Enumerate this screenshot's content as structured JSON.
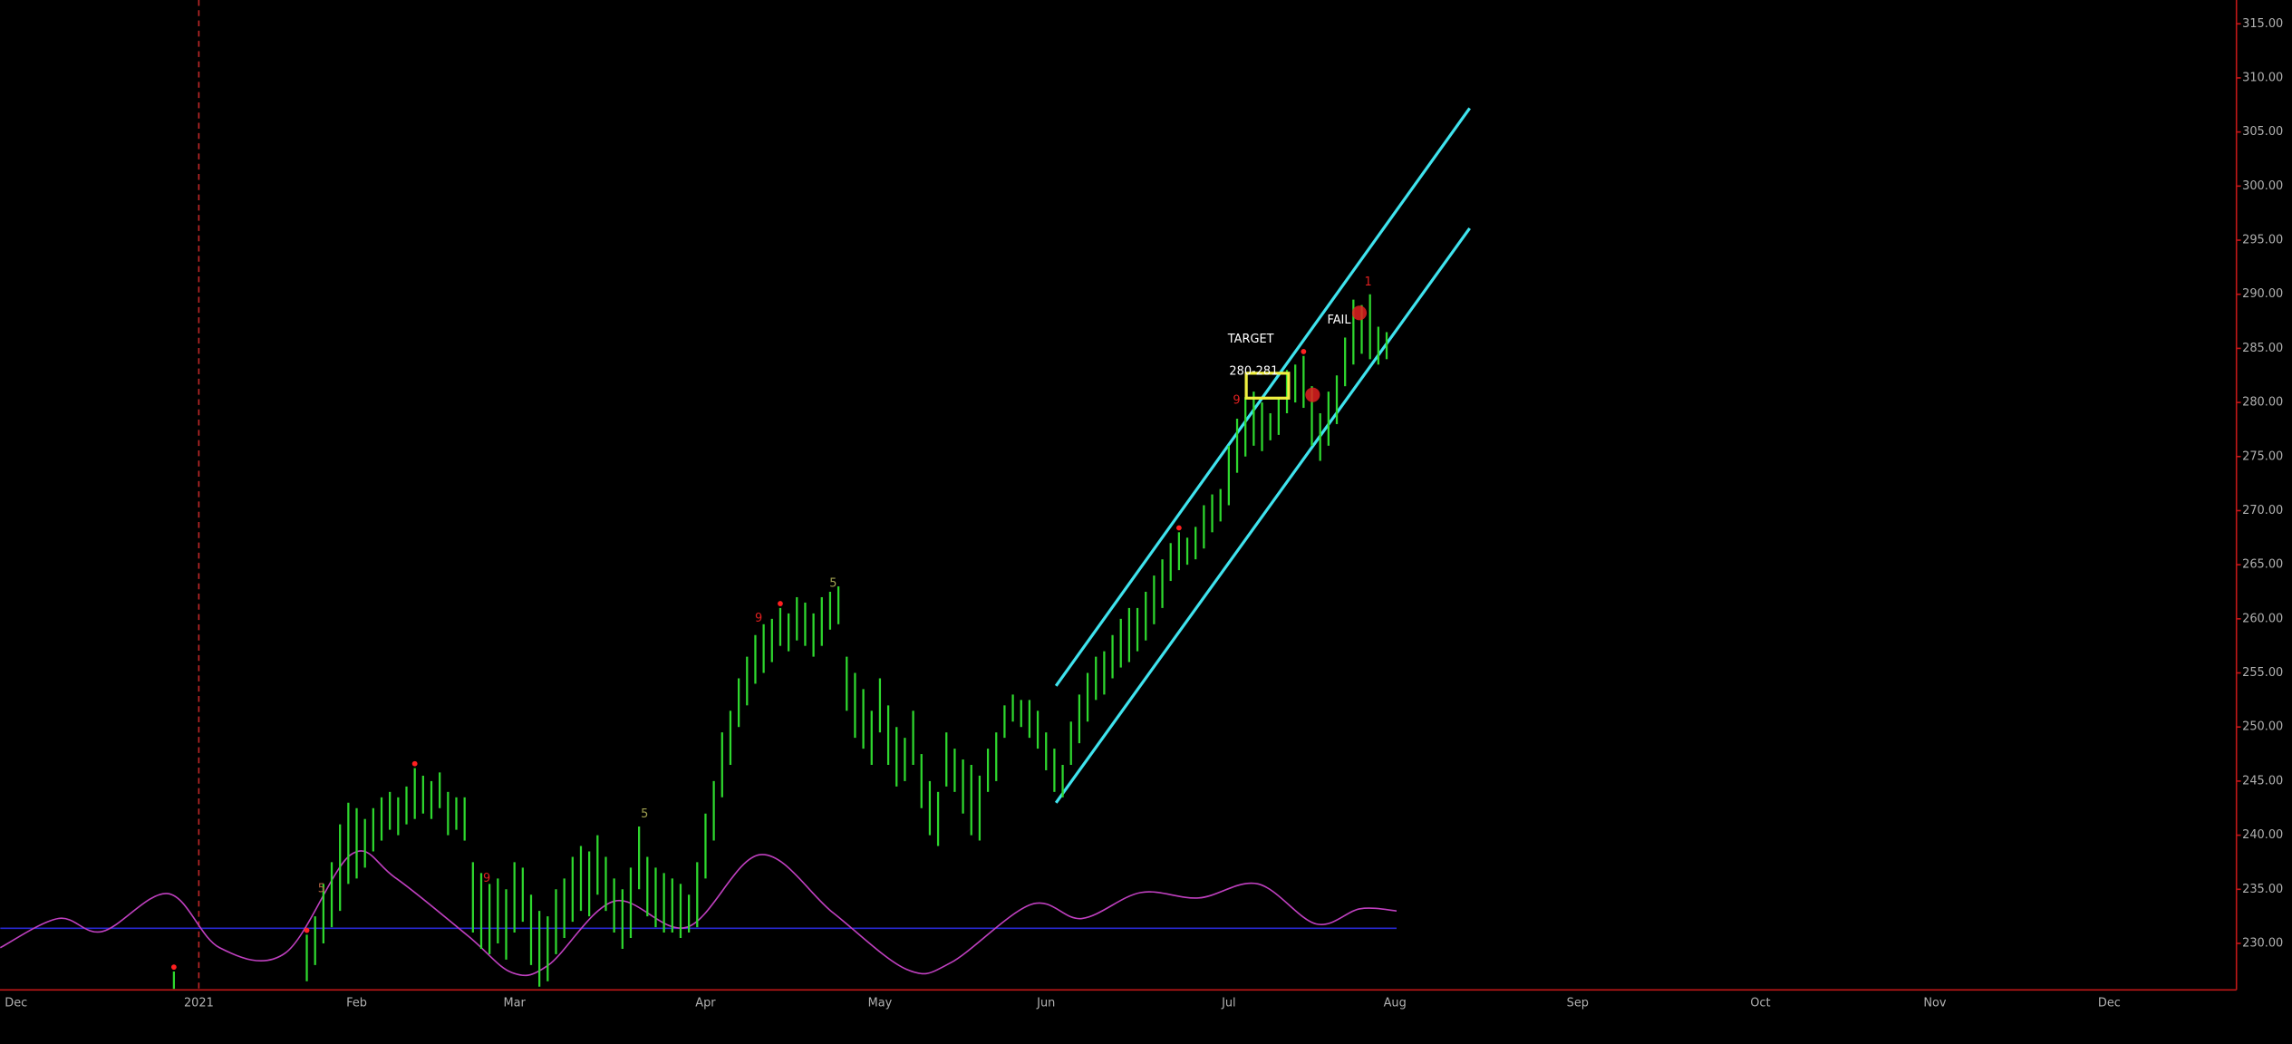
{
  "chart_data": {
    "type": "ohlc",
    "categories": [
      "Dec",
      null,
      null,
      null,
      null,
      null,
      null,
      null,
      null,
      null,
      null,
      null,
      null,
      null,
      null,
      null,
      null,
      null,
      null,
      null,
      null,
      null,
      "2021",
      null,
      null,
      null,
      null,
      null,
      null,
      null,
      null,
      null,
      null,
      null,
      null,
      null,
      null,
      null,
      null,
      null,
      null,
      "Feb",
      null,
      null,
      null,
      null,
      null,
      null,
      null,
      null,
      null,
      null,
      null,
      null,
      null,
      null,
      null,
      null,
      null,
      null,
      "Mar",
      null,
      null,
      null,
      null,
      null,
      null,
      null,
      null,
      null,
      null,
      null,
      null,
      null,
      null,
      null,
      null,
      null,
      null,
      null,
      null,
      null,
      null,
      "Apr",
      null,
      null,
      null,
      null,
      null,
      null,
      null,
      null,
      null,
      null,
      null,
      null,
      null,
      null,
      null,
      null,
      null,
      null,
      null,
      null,
      "May",
      null,
      null,
      null,
      null,
      null,
      null,
      null,
      null,
      null,
      null,
      null,
      null,
      null,
      null,
      null,
      null,
      null,
      null,
      null,
      "Jun",
      null,
      null,
      null,
      null,
      null,
      null,
      null,
      null,
      null,
      null,
      null,
      null,
      null,
      null,
      null,
      null,
      null,
      null,
      null,
      null,
      null,
      "Jul",
      null,
      null,
      null,
      null,
      null,
      null,
      null,
      null,
      null,
      null,
      null,
      null,
      null,
      null,
      null,
      null,
      null,
      null,
      null,
      "Aug",
      null,
      null,
      null,
      null,
      null,
      null,
      null,
      null,
      null,
      null,
      null,
      null,
      null,
      null,
      null,
      null,
      null,
      null,
      null,
      null,
      null,
      "Sep",
      null,
      null,
      null,
      null,
      null,
      null,
      null,
      null,
      null,
      null,
      null,
      null,
      null,
      null,
      null,
      null,
      null,
      null,
      null,
      null,
      null,
      "Oct",
      null,
      null,
      null,
      null,
      null,
      null,
      null,
      null,
      null,
      null,
      null,
      null,
      null,
      null,
      null,
      null,
      null,
      null,
      null,
      null,
      "Nov",
      null,
      null,
      null,
      null,
      null,
      null,
      null,
      null,
      null,
      null,
      null,
      null,
      null,
      null,
      null,
      null,
      null,
      null,
      null,
      null,
      "Dec",
      null,
      null,
      null,
      null,
      null,
      null,
      null,
      null,
      null,
      null,
      null,
      null,
      null,
      null
    ],
    "high": [
      null,
      null,
      null,
      null,
      null,
      null,
      null,
      null,
      null,
      null,
      null,
      null,
      null,
      null,
      null,
      null,
      null,
      null,
      null,
      227.4,
      null,
      null,
      null,
      null,
      null,
      null,
      null,
      null,
      null,
      null,
      null,
      null,
      null,
      null,
      null,
      230.8,
      232.5,
      235.5,
      237.5,
      241.0,
      243.0,
      242.5,
      241.5,
      242.5,
      243.5,
      244.0,
      243.5,
      244.5,
      246.2,
      245.5,
      245.0,
      245.8,
      244.0,
      243.5,
      243.5,
      237.5,
      236.5,
      235.5,
      236.0,
      235.0,
      237.5,
      237.0,
      234.5,
      233.0,
      232.5,
      235.0,
      236.0,
      238.0,
      239.0,
      238.5,
      240.0,
      238.0,
      236.0,
      235.0,
      237.0,
      240.8,
      238.0,
      237.0,
      236.5,
      236.0,
      235.5,
      234.5,
      237.5,
      242.0,
      245.0,
      249.5,
      251.5,
      254.5,
      256.5,
      258.5,
      259.5,
      260.0,
      261.0,
      260.5,
      262.0,
      261.5,
      260.5,
      262.0,
      262.5,
      263.0,
      256.5,
      255.0,
      253.5,
      251.5,
      254.5,
      252.0,
      250.0,
      249.0,
      251.5,
      247.5,
      245.0,
      244.0,
      249.5,
      248.0,
      247.0,
      246.5,
      245.5,
      248.0,
      249.5,
      252.0,
      253.0,
      252.5,
      252.5,
      251.5,
      249.5,
      248.0,
      246.5,
      250.5,
      253.0,
      255.0,
      256.5,
      257.0,
      258.5,
      260.0,
      261.0,
      261.0,
      262.5,
      264.0,
      265.5,
      267.0,
      268.0,
      267.5,
      268.5,
      270.5,
      271.5,
      272.0,
      276.0,
      278.5,
      280.5,
      281.0,
      280.0,
      279.0,
      280.5,
      283.0,
      283.5,
      284.3,
      281.5,
      279.0,
      281.0,
      282.5,
      286.0,
      289.5,
      289.0,
      290.0,
      287.0,
      286.5,
      null,
      null,
      null,
      null,
      null,
      null,
      null,
      null,
      null,
      null,
      null,
      null,
      null,
      null,
      null,
      null,
      null,
      null,
      null,
      null,
      null,
      null,
      null,
      null,
      null,
      null,
      null,
      null,
      null,
      null,
      null,
      null,
      null,
      null,
      null,
      null,
      null,
      null,
      null,
      null,
      null,
      null,
      null,
      null,
      null,
      null,
      null,
      null,
      null,
      null,
      null,
      null,
      null,
      null,
      null,
      null,
      null,
      null,
      null,
      null,
      null,
      null,
      null,
      null,
      null,
      null,
      null,
      null,
      null,
      null,
      null,
      null,
      null,
      null,
      null,
      null,
      null,
      null,
      null,
      null,
      null,
      null,
      null,
      null,
      null,
      null,
      null,
      null,
      null,
      null,
      null,
      null,
      null,
      null,
      null,
      null,
      null,
      null,
      null,
      null,
      null
    ],
    "low": [
      null,
      null,
      null,
      null,
      null,
      null,
      null,
      null,
      null,
      null,
      null,
      null,
      null,
      null,
      null,
      null,
      null,
      null,
      null,
      225.8,
      null,
      null,
      null,
      null,
      null,
      null,
      null,
      null,
      null,
      null,
      null,
      null,
      null,
      null,
      null,
      226.5,
      228.0,
      230.0,
      231.5,
      233.0,
      235.5,
      236.0,
      237.0,
      238.5,
      239.5,
      240.5,
      240.0,
      241.0,
      241.5,
      242.0,
      241.5,
      242.5,
      240.0,
      240.5,
      239.5,
      231.0,
      229.5,
      229.0,
      230.0,
      228.5,
      231.0,
      232.0,
      228.0,
      226.0,
      226.5,
      229.0,
      230.5,
      232.0,
      233.0,
      232.5,
      234.5,
      233.0,
      231.0,
      229.5,
      230.5,
      235.0,
      232.5,
      231.5,
      231.0,
      231.0,
      230.5,
      231.0,
      231.5,
      236.0,
      239.5,
      243.5,
      246.5,
      250.0,
      252.0,
      254.0,
      255.0,
      256.0,
      257.5,
      257.0,
      258.0,
      257.5,
      256.5,
      257.5,
      259.0,
      259.5,
      251.5,
      249.0,
      248.0,
      246.5,
      249.5,
      246.5,
      244.5,
      245.0,
      246.5,
      242.5,
      240.0,
      239.0,
      244.5,
      244.0,
      242.0,
      240.0,
      239.5,
      244.0,
      245.0,
      249.0,
      250.5,
      250.0,
      249.0,
      248.0,
      246.0,
      244.0,
      243.5,
      246.5,
      248.5,
      250.5,
      252.5,
      253.0,
      254.5,
      255.5,
      256.0,
      257.0,
      258.0,
      259.5,
      261.0,
      263.5,
      264.5,
      265.0,
      265.5,
      266.5,
      268.0,
      269.0,
      270.5,
      273.5,
      275.0,
      276.0,
      275.5,
      276.5,
      277.0,
      279.0,
      280.0,
      279.5,
      276.0,
      274.6,
      276.0,
      278.0,
      281.5,
      283.5,
      284.5,
      284.0,
      283.5,
      284.0,
      null,
      null,
      null,
      null,
      null,
      null,
      null,
      null,
      null,
      null,
      null,
      null,
      null,
      null,
      null,
      null,
      null,
      null,
      null,
      null,
      null,
      null,
      null,
      null,
      null,
      null,
      null,
      null,
      null,
      null,
      null,
      null,
      null,
      null,
      null,
      null,
      null,
      null,
      null,
      null,
      null,
      null,
      null,
      null,
      null,
      null,
      null,
      null,
      null,
      null,
      null,
      null,
      null,
      null,
      null,
      null,
      null,
      null,
      null,
      null,
      null,
      null,
      null,
      null,
      null,
      null,
      null,
      null,
      null,
      null,
      null,
      null,
      null,
      null,
      null,
      null,
      null,
      null,
      null,
      null,
      null,
      null,
      null,
      null,
      null,
      null,
      null,
      null,
      null,
      null,
      null,
      null,
      null,
      null,
      null,
      null,
      null,
      null,
      null,
      null,
      null
    ],
    "color": "#2ed82e",
    "ylim": [
      225.7,
      317.2
    ],
    "yticks": [
      {
        "value": 230,
        "label": "230.00"
      },
      {
        "value": 235,
        "label": "235.00"
      },
      {
        "value": 240,
        "label": "240.00"
      },
      {
        "value": 245,
        "label": "245.00"
      },
      {
        "value": 250,
        "label": "250.00"
      },
      {
        "value": 255,
        "label": "255.00"
      },
      {
        "value": 260,
        "label": "260.00"
      },
      {
        "value": 265,
        "label": "265.00"
      },
      {
        "value": 270,
        "label": "270.00"
      },
      {
        "value": 275,
        "label": "275.00"
      },
      {
        "value": 280,
        "label": "280.00"
      },
      {
        "value": 285,
        "label": "285.00"
      },
      {
        "value": 290,
        "label": "290.00"
      },
      {
        "value": 295,
        "label": "295.00"
      },
      {
        "value": 300,
        "label": "300.00"
      },
      {
        "value": 305,
        "label": "305.00"
      },
      {
        "value": 310,
        "label": "310.00"
      },
      {
        "value": 315,
        "label": "315.00"
      }
    ],
    "channel": {
      "color": "#3fe3ee",
      "lines": [
        {
          "x": [
            125.2,
            175
          ],
          "values": [
            253.8,
            307.2
          ]
        },
        {
          "x": [
            125.2,
            175
          ],
          "values": [
            243.0,
            296.1
          ]
        }
      ]
    },
    "oscillator": {
      "color": "#c040c0",
      "x": [
        -1.9,
        5.1,
        10.4,
        18.3,
        24.5,
        32.4,
        40.3,
        45.6,
        54.4,
        59.7,
        64.1,
        72.0,
        80.8,
        89.6,
        98.4,
        107.2,
        112.5,
        122.2,
        128.3,
        135.4,
        142.4,
        149.5,
        156.5,
        161.8,
        166.2
      ],
      "values": [
        229.6,
        232.3,
        231.1,
        234.6,
        229.6,
        229.1,
        238.2,
        236.1,
        230.7,
        227.3,
        228.0,
        233.9,
        231.5,
        238.2,
        232.8,
        227.6,
        228.2,
        233.6,
        232.3,
        234.7,
        234.2,
        235.5,
        231.8,
        233.2,
        233.0
      ]
    },
    "hline": {
      "value": 231.4,
      "color": "#2828d0",
      "x": [
        -1.9,
        166.2
      ]
    },
    "divider": {
      "x": 22,
      "color": "#c02828"
    },
    "target_zone": {
      "x": [
        148.1,
        153.2
      ],
      "values": [
        280.4,
        282.7
      ],
      "color": "#f0f040"
    },
    "signals": [
      19,
      35,
      48,
      92,
      140,
      155
    ],
    "signal_color": "#ff2020",
    "counts": [
      {
        "text": "5",
        "color": "#b06040"
      },
      {
        "text": "9",
        "color": "#e02020"
      },
      {
        "text": "5",
        "color": "#a0a050"
      },
      {
        "text": "9",
        "color": "#e02020"
      },
      {
        "text": "5",
        "color": "#a0a050"
      },
      {
        "text": "9",
        "color": "#e02020"
      },
      {
        "text": "1",
        "color": "#e02020"
      }
    ],
    "annotations": [
      "TARGET",
      "280-281",
      "FAIL"
    ]
  }
}
